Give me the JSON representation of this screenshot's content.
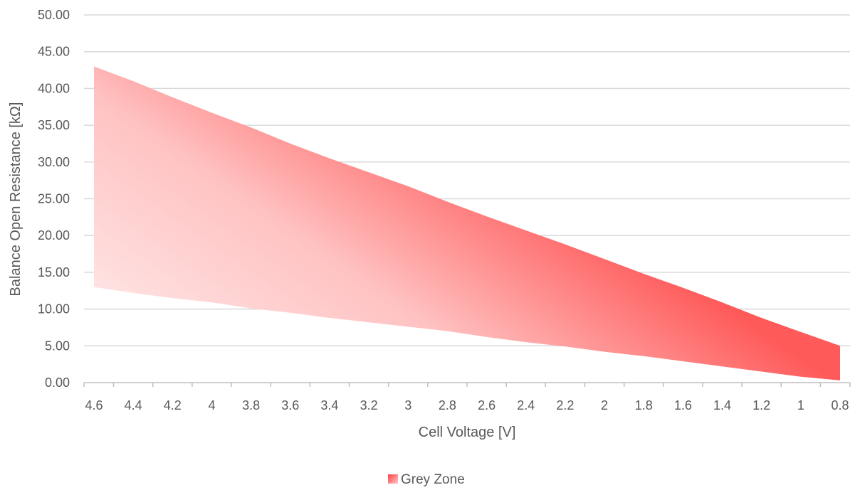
{
  "chart_data": {
    "type": "area",
    "title": "",
    "xlabel": "Cell Voltage [V]",
    "ylabel": "Balance Open Resistance [kΩ]",
    "x_reversed": true,
    "xlim": [
      4.6,
      0.8
    ],
    "ylim": [
      0,
      50
    ],
    "x_ticks": [
      "4.6",
      "4.4",
      "4.2",
      "4",
      "3.8",
      "3.6",
      "3.4",
      "3.2",
      "3",
      "2.8",
      "2.6",
      "2.4",
      "2.2",
      "2",
      "1.8",
      "1.6",
      "1.4",
      "1.2",
      "1",
      "0.8"
    ],
    "y_ticks": [
      "0.00",
      "5.00",
      "10.00",
      "15.00",
      "20.00",
      "25.00",
      "30.00",
      "35.00",
      "40.00",
      "45.00",
      "50.00"
    ],
    "grid": true,
    "legend_position": "bottom",
    "series": [
      {
        "name": "Grey Zone",
        "x": [
          4.6,
          4.4,
          4.2,
          4,
          3.8,
          3.6,
          3.4,
          3.2,
          3,
          2.8,
          2.6,
          2.4,
          2.2,
          2,
          1.8,
          1.6,
          1.4,
          1.2,
          1,
          0.8
        ],
        "lower": [
          13.0,
          12.2,
          11.5,
          10.9,
          10.1,
          9.5,
          8.8,
          8.2,
          7.6,
          7.0,
          6.2,
          5.5,
          4.9,
          4.2,
          3.6,
          2.9,
          2.2,
          1.5,
          0.8,
          0.3
        ],
        "upper": [
          43.0,
          41.0,
          38.8,
          36.7,
          34.7,
          32.5,
          30.5,
          28.6,
          26.7,
          24.6,
          22.6,
          20.7,
          18.8,
          16.8,
          14.8,
          12.9,
          10.9,
          8.8,
          6.9,
          5.0
        ],
        "color": "#ff5a5a"
      }
    ]
  },
  "legend": {
    "label": "Grey Zone"
  },
  "colors": {
    "area_dark": "#ff5a5a",
    "area_light": "#ffc7c7",
    "grid": "#d9d9d9",
    "text": "#595959"
  }
}
